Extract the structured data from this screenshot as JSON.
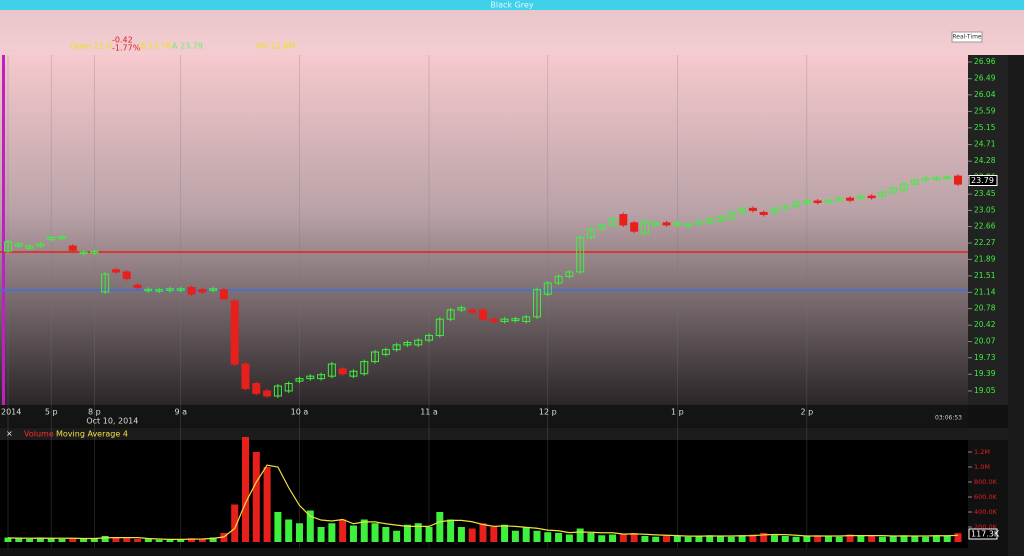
{
  "window": {
    "title": "Black Grey",
    "feed": "Real-Time",
    "quote": {
      "open": "Open 21.0",
      "change": "-0.42",
      "change_pct": "-1.77%",
      "bid": "B 23.78",
      "ask": "A 23.79",
      "volume": "Vol 12.9M"
    }
  },
  "chart_data": [
    {
      "type": "candlestick",
      "log": true,
      "up_color": "#3ef03e",
      "down_color": "#e8201c",
      "categories": [
        "2014",
        null,
        null,
        null,
        "5 p",
        null,
        null,
        null,
        "8 p",
        null,
        null,
        null,
        null,
        null,
        null,
        null,
        "9 a",
        null,
        null,
        null,
        null,
        null,
        null,
        null,
        null,
        null,
        null,
        "10 a",
        null,
        null,
        null,
        null,
        null,
        null,
        null,
        null,
        null,
        null,
        null,
        "11 a",
        null,
        null,
        null,
        null,
        null,
        null,
        null,
        null,
        null,
        null,
        "12 p",
        null,
        null,
        null,
        null,
        null,
        null,
        null,
        null,
        null,
        null,
        null,
        "1 p",
        null,
        null,
        null,
        null,
        null,
        null,
        null,
        null,
        null,
        null,
        null,
        "2 p",
        null,
        null,
        null,
        null,
        null,
        null,
        null,
        null,
        null,
        null,
        null,
        null,
        null,
        null
      ],
      "date_label": "Oct 10, 2014",
      "time": "03:06:53",
      "open": [
        22.08,
        22.2,
        22.15,
        22.2,
        22.35,
        22.4,
        22.2,
        22.05,
        22.05,
        21.15,
        21.65,
        21.6,
        21.3,
        21.2,
        21.2,
        21.2,
        21.2,
        21.25,
        21.2,
        21.2,
        21.2,
        20.95,
        19.6,
        19.2,
        19.05,
        18.95,
        19.05,
        19.25,
        19.3,
        19.3,
        19.35,
        19.5,
        19.35,
        19.4,
        19.65,
        19.8,
        19.9,
        20.0,
        20.0,
        20.1,
        20.2,
        20.55,
        20.75,
        20.75,
        20.75,
        20.55,
        20.5,
        20.52,
        20.5,
        20.6,
        21.1,
        21.35,
        21.5,
        21.6,
        22.4,
        22.6,
        22.7,
        22.95,
        22.75,
        22.5,
        22.7,
        22.75,
        22.7,
        22.7,
        22.72,
        22.75,
        22.8,
        22.85,
        23.0,
        23.1,
        23.0,
        23.0,
        23.1,
        23.15,
        23.22,
        23.28,
        23.25,
        23.3,
        23.35,
        23.35,
        23.4,
        23.4,
        23.5,
        23.55,
        23.7,
        23.8,
        23.85,
        23.85,
        23.9
      ],
      "close": [
        22.3,
        22.25,
        22.2,
        22.25,
        22.4,
        22.42,
        22.1,
        22.06,
        22.07,
        21.55,
        21.6,
        21.45,
        21.25,
        21.21,
        21.2,
        21.22,
        21.22,
        21.1,
        21.15,
        21.22,
        21.0,
        19.6,
        19.1,
        19.0,
        18.95,
        19.15,
        19.2,
        19.3,
        19.35,
        19.38,
        19.6,
        19.4,
        19.45,
        19.65,
        19.85,
        19.9,
        20.0,
        20.05,
        20.1,
        20.2,
        20.55,
        20.75,
        20.8,
        20.7,
        20.55,
        20.5,
        20.55,
        20.56,
        20.6,
        21.2,
        21.35,
        21.5,
        21.6,
        22.4,
        22.6,
        22.7,
        22.85,
        22.7,
        22.55,
        22.8,
        22.75,
        22.7,
        22.75,
        22.72,
        22.78,
        22.85,
        22.9,
        23.0,
        23.1,
        23.05,
        22.95,
        23.1,
        23.15,
        23.25,
        23.28,
        23.25,
        23.3,
        23.35,
        23.3,
        23.4,
        23.38,
        23.5,
        23.6,
        23.7,
        23.8,
        23.85,
        23.86,
        23.88,
        23.7
      ],
      "lines": [
        {
          "value": 22.06,
          "color": "#e8201c"
        },
        {
          "value": 21.19,
          "color": "#3a6fe8"
        }
      ],
      "last_price": 23.79,
      "ylim": [
        18.77,
        27.16
      ],
      "yticks": [
        19.05,
        19.39,
        19.73,
        20.07,
        20.42,
        20.78,
        21.14,
        21.51,
        21.89,
        22.27,
        22.66,
        23.05,
        23.45,
        23.86,
        24.28,
        24.71,
        25.15,
        25.59,
        26.04,
        26.49,
        26.96
      ]
    },
    {
      "type": "bar",
      "series": [
        {
          "name": "Volume",
          "color": "#ff2a2a",
          "values": [
            60000,
            50000,
            40000,
            60000,
            50000,
            40000,
            50000,
            40000,
            50000,
            80000,
            60000,
            50000,
            40000,
            40000,
            30000,
            30000,
            40000,
            50000,
            40000,
            60000,
            120000,
            500000,
            1400000,
            1200000,
            1000000,
            400000,
            300000,
            250000,
            420000,
            200000,
            250000,
            300000,
            220000,
            300000,
            250000,
            200000,
            150000,
            230000,
            250000,
            200000,
            400000,
            300000,
            200000,
            180000,
            250000,
            200000,
            230000,
            150000,
            200000,
            150000,
            130000,
            120000,
            100000,
            180000,
            120000,
            90000,
            100000,
            110000,
            120000,
            80000,
            70000,
            90000,
            80000,
            70000,
            80000,
            90000,
            80000,
            70000,
            90000,
            100000,
            120000,
            90000,
            80000,
            70000,
            80000,
            90000,
            80000,
            70000,
            100000,
            90000,
            80000,
            70000,
            80000,
            90000,
            80000,
            70000,
            90000,
            80000,
            117300
          ]
        },
        {
          "name": "Moving Average 4",
          "color": "#f0e040",
          "values": [
            55000,
            52000,
            50000,
            52000,
            50000,
            50000,
            50000,
            47000,
            47000,
            55000,
            58000,
            58000,
            58000,
            47000,
            40000,
            35000,
            35000,
            38000,
            40000,
            48000,
            68000,
            180000,
            520000,
            800000,
            1025000,
            1000000,
            725000,
            488000,
            343000,
            293000,
            280000,
            300000,
            243000,
            268000,
            268000,
            243000,
            225000,
            208000,
            208000,
            208000,
            270000,
            288000,
            288000,
            270000,
            233000,
            208000,
            215000,
            208000,
            195000,
            183000,
            158000,
            150000,
            125000,
            133000,
            130000,
            123000,
            123000,
            105000,
            108000,
            103000,
            95000,
            90000,
            85000,
            78000,
            78000,
            80000,
            80000,
            80000,
            83000,
            85000,
            95000,
            100000,
            98000,
            90000,
            80000,
            80000,
            80000,
            80000,
            85000,
            85000,
            85000,
            85000,
            80000,
            80000,
            80000,
            80000,
            83000,
            83000,
            89000
          ]
        }
      ],
      "last_label": "117.3K",
      "ylim": [
        0,
        1400000
      ],
      "yticks": [
        {
          "value": 200000,
          "label": "200.0K"
        },
        {
          "value": 400000,
          "label": "400.0K"
        },
        {
          "value": 600000,
          "label": "600.0K"
        },
        {
          "value": 800000,
          "label": "800.0K"
        },
        {
          "value": 1000000,
          "label": "1.0M"
        },
        {
          "value": 1200000,
          "label": "1.2M"
        }
      ]
    }
  ]
}
